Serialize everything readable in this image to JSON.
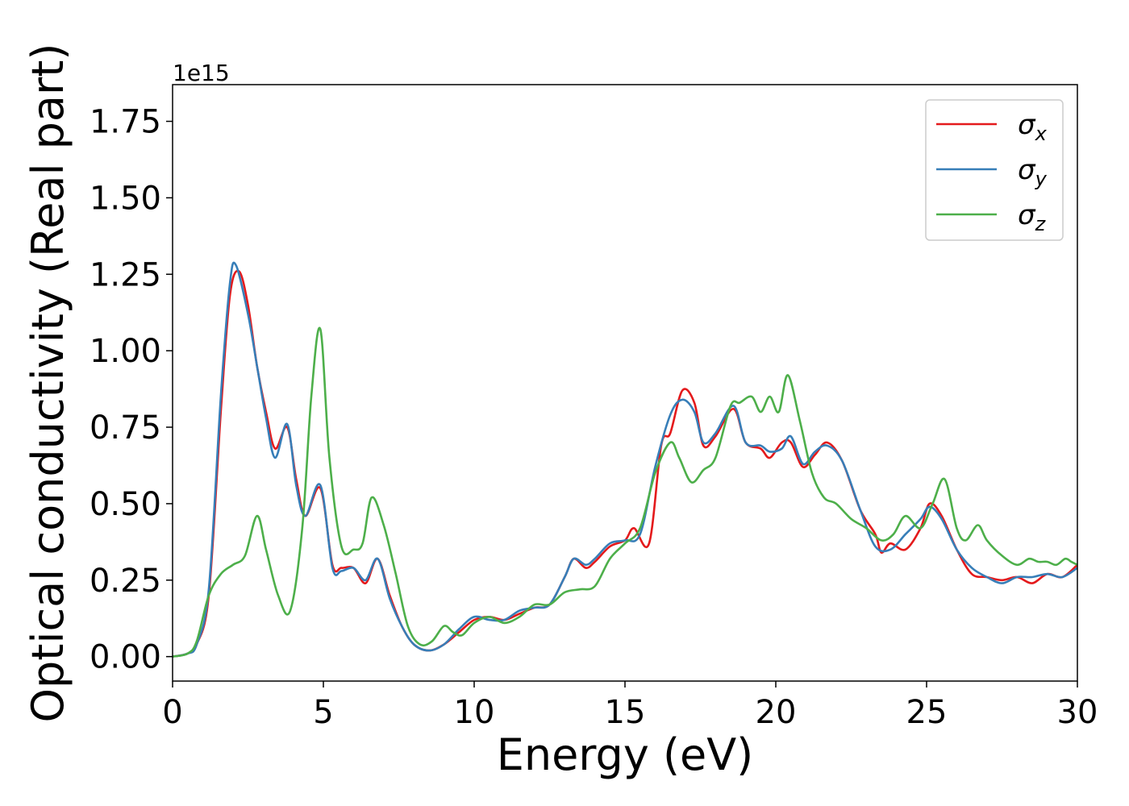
{
  "chart_data": {
    "type": "line",
    "title": "",
    "xlabel": "Energy (eV)",
    "ylabel": "Optical conductivity (Real part)",
    "y_offset_label": "1e15",
    "xlim": [
      0,
      30
    ],
    "ylim": [
      -0.08,
      1.87
    ],
    "x_ticks": [
      0,
      5,
      10,
      15,
      20,
      25,
      30
    ],
    "x_tick_labels": [
      "0",
      "5",
      "10",
      "15",
      "20",
      "25",
      "30"
    ],
    "y_ticks": [
      0.0,
      0.25,
      0.5,
      0.75,
      1.0,
      1.25,
      1.5,
      1.75
    ],
    "y_tick_labels": [
      "0.00",
      "0.25",
      "0.50",
      "0.75",
      "1.00",
      "1.25",
      "1.50",
      "1.75"
    ],
    "grid": false,
    "legend_position": "top-right",
    "series": [
      {
        "name": "σ",
        "subscript": "x",
        "color": "#e41a1c",
        "x": [
          0,
          0.5,
          0.8,
          1.2,
          1.6,
          1.9,
          2.2,
          2.5,
          2.8,
          3.1,
          3.4,
          3.8,
          4.1,
          4.4,
          4.9,
          5.3,
          5.6,
          6.0,
          6.4,
          6.8,
          7.2,
          7.6,
          8.0,
          8.5,
          9.0,
          9.5,
          10.0,
          10.5,
          11.0,
          11.5,
          12.0,
          12.5,
          13.0,
          13.3,
          13.7,
          14.0,
          14.5,
          15.0,
          15.3,
          15.8,
          16.2,
          16.5,
          16.9,
          17.3,
          17.6,
          18.0,
          18.6,
          19.0,
          19.5,
          19.8,
          20.2,
          20.5,
          20.9,
          21.3,
          21.7,
          22.2,
          22.8,
          23.3,
          23.5,
          23.8,
          24.3,
          24.8,
          25.1,
          25.5,
          26.0,
          26.5,
          27.0,
          27.5,
          28.0,
          28.5,
          29.0,
          29.5,
          30.0
        ],
        "y": [
          0.0,
          0.01,
          0.04,
          0.2,
          0.8,
          1.18,
          1.26,
          1.15,
          0.95,
          0.8,
          0.68,
          0.75,
          0.58,
          0.46,
          0.55,
          0.3,
          0.29,
          0.29,
          0.24,
          0.32,
          0.2,
          0.1,
          0.04,
          0.02,
          0.04,
          0.08,
          0.12,
          0.13,
          0.12,
          0.14,
          0.16,
          0.17,
          0.26,
          0.32,
          0.29,
          0.31,
          0.36,
          0.38,
          0.42,
          0.37,
          0.69,
          0.73,
          0.87,
          0.83,
          0.69,
          0.72,
          0.81,
          0.7,
          0.68,
          0.65,
          0.7,
          0.7,
          0.62,
          0.66,
          0.7,
          0.64,
          0.48,
          0.4,
          0.34,
          0.37,
          0.35,
          0.42,
          0.5,
          0.46,
          0.35,
          0.27,
          0.26,
          0.25,
          0.26,
          0.24,
          0.27,
          0.26,
          0.3
        ]
      },
      {
        "name": "σ",
        "subscript": "y",
        "color": "#377eb8",
        "x": [
          0,
          0.5,
          0.8,
          1.2,
          1.6,
          1.9,
          2.1,
          2.5,
          2.8,
          3.1,
          3.4,
          3.8,
          4.1,
          4.4,
          4.9,
          5.3,
          5.6,
          6.0,
          6.4,
          6.8,
          7.2,
          7.6,
          8.0,
          8.5,
          9.0,
          9.5,
          10.0,
          10.5,
          11.0,
          11.5,
          12.0,
          12.5,
          13.0,
          13.3,
          13.7,
          14.0,
          14.5,
          15.0,
          15.5,
          16.0,
          16.5,
          16.9,
          17.3,
          17.6,
          18.0,
          18.6,
          19.0,
          19.5,
          19.8,
          20.2,
          20.5,
          20.9,
          21.3,
          21.7,
          22.2,
          22.8,
          23.3,
          23.8,
          24.3,
          24.8,
          25.1,
          25.5,
          26.0,
          26.5,
          27.0,
          27.5,
          28.0,
          28.5,
          29.0,
          29.5,
          30.0
        ],
        "y": [
          0.0,
          0.01,
          0.04,
          0.22,
          0.85,
          1.22,
          1.28,
          1.12,
          0.95,
          0.78,
          0.65,
          0.76,
          0.56,
          0.46,
          0.56,
          0.29,
          0.28,
          0.29,
          0.25,
          0.32,
          0.19,
          0.1,
          0.04,
          0.02,
          0.04,
          0.09,
          0.13,
          0.12,
          0.12,
          0.15,
          0.16,
          0.17,
          0.26,
          0.32,
          0.3,
          0.32,
          0.37,
          0.38,
          0.4,
          0.62,
          0.79,
          0.84,
          0.8,
          0.7,
          0.73,
          0.82,
          0.7,
          0.69,
          0.67,
          0.68,
          0.72,
          0.63,
          0.67,
          0.69,
          0.64,
          0.48,
          0.36,
          0.35,
          0.4,
          0.45,
          0.49,
          0.45,
          0.35,
          0.29,
          0.26,
          0.24,
          0.26,
          0.26,
          0.27,
          0.26,
          0.29
        ]
      },
      {
        "name": "σ",
        "subscript": "z",
        "color": "#4daf4a",
        "x": [
          0,
          0.5,
          0.8,
          1.2,
          1.6,
          2.0,
          2.4,
          2.8,
          3.1,
          3.5,
          3.9,
          4.3,
          4.6,
          4.9,
          5.2,
          5.6,
          6.0,
          6.3,
          6.6,
          7.0,
          7.4,
          7.8,
          8.2,
          8.6,
          9.0,
          9.3,
          9.6,
          10.0,
          10.5,
          11.0,
          11.5,
          12.0,
          12.5,
          13.0,
          13.5,
          14.0,
          14.5,
          15.0,
          15.5,
          16.0,
          16.5,
          16.8,
          17.2,
          17.6,
          18.0,
          18.5,
          18.8,
          19.2,
          19.5,
          19.8,
          20.1,
          20.4,
          20.8,
          21.2,
          21.6,
          22.0,
          22.5,
          23.0,
          23.5,
          23.9,
          24.3,
          24.8,
          25.2,
          25.6,
          26.0,
          26.3,
          26.7,
          27.0,
          27.5,
          28.0,
          28.4,
          28.7,
          29.0,
          29.3,
          29.6,
          29.8,
          30.0
        ],
        "y": [
          0.0,
          0.01,
          0.05,
          0.2,
          0.27,
          0.3,
          0.33,
          0.46,
          0.35,
          0.2,
          0.15,
          0.42,
          0.85,
          1.07,
          0.65,
          0.36,
          0.35,
          0.37,
          0.52,
          0.43,
          0.27,
          0.1,
          0.04,
          0.05,
          0.1,
          0.08,
          0.07,
          0.11,
          0.13,
          0.11,
          0.13,
          0.17,
          0.17,
          0.21,
          0.22,
          0.23,
          0.32,
          0.37,
          0.42,
          0.6,
          0.7,
          0.65,
          0.57,
          0.61,
          0.65,
          0.82,
          0.83,
          0.85,
          0.8,
          0.85,
          0.8,
          0.92,
          0.77,
          0.6,
          0.52,
          0.5,
          0.45,
          0.42,
          0.38,
          0.4,
          0.46,
          0.42,
          0.5,
          0.58,
          0.42,
          0.38,
          0.43,
          0.38,
          0.33,
          0.3,
          0.32,
          0.31,
          0.31,
          0.3,
          0.32,
          0.31,
          0.3
        ]
      }
    ]
  }
}
